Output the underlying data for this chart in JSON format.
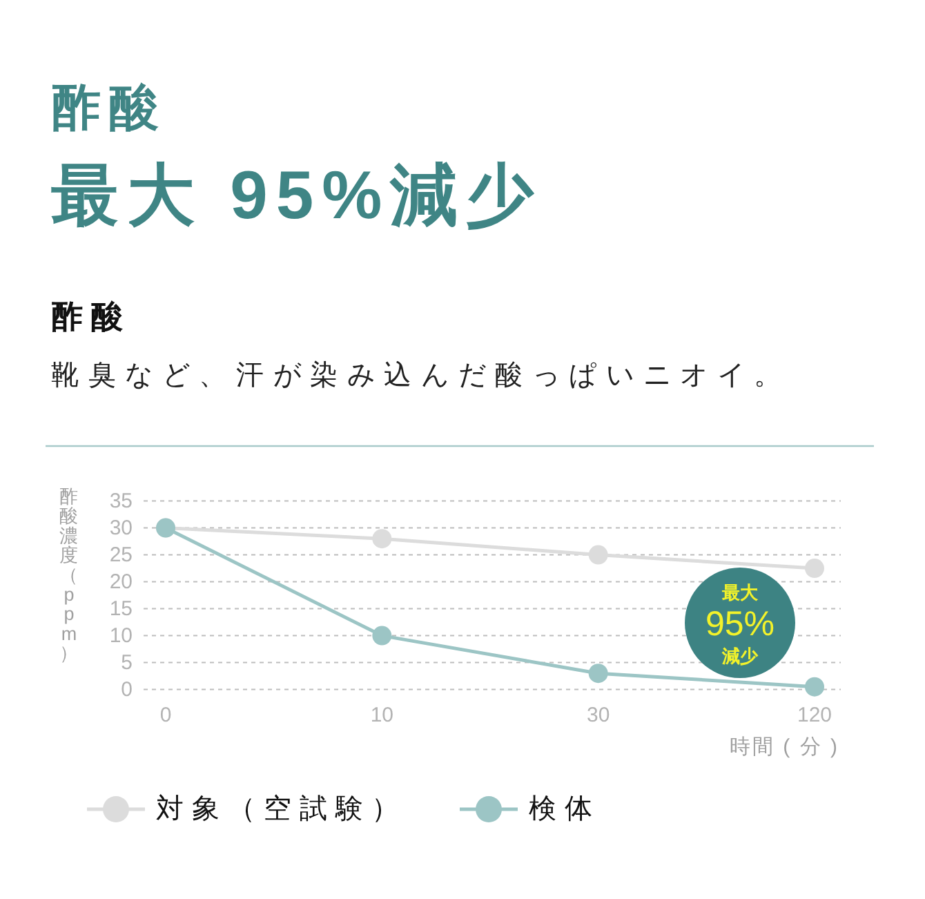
{
  "chart_data": {
    "type": "line",
    "title": "酢酸",
    "subtitle": "最大 95%減少",
    "xlabel": "時間 ( 分 )",
    "ylabel": "酢酸濃度（ppm）",
    "annotations": [
      "酢酸",
      "靴臭など、汗が染み込んだ酸っぱいニオイ。",
      "最大",
      "95%",
      "減少"
    ],
    "categories": [
      "0",
      "10",
      "30",
      "120"
    ],
    "series": [
      {
        "name": "対象（空試験）",
        "color": "#dcdcdc",
        "values": [
          30,
          28,
          25,
          22.5
        ]
      },
      {
        "name": "検体",
        "color": "#9cc5c5",
        "values": [
          30,
          10,
          3,
          0.5
        ]
      }
    ],
    "ylim": [
      0,
      35
    ],
    "yticks": [
      0,
      5,
      10,
      15,
      20,
      25,
      30,
      35
    ],
    "grid": "y",
    "legend": "bottom",
    "marker": "circle",
    "line_style": "solid"
  }
}
